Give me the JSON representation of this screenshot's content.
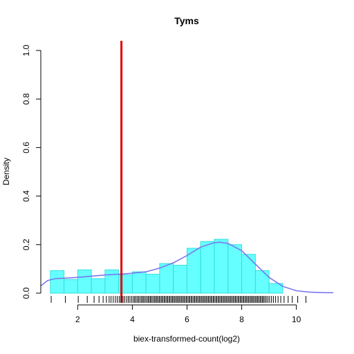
{
  "chart_data": {
    "type": "histogram",
    "title": "Tyms",
    "xlabel": "biex-transformed-count(log2)",
    "ylabel": "Density",
    "xlim": [
      0.65,
      11.35
    ],
    "ylim": [
      0,
      1.0
    ],
    "x_ticks": [
      2,
      4,
      6,
      8,
      10
    ],
    "y_ticks": [
      0.0,
      0.2,
      0.4,
      0.6,
      0.8,
      1.0
    ],
    "x_tick_labels": [
      "2",
      "4",
      "6",
      "8",
      "10"
    ],
    "y_tick_labels": [
      "0.0",
      "0.2",
      "0.4",
      "0.6",
      "0.8",
      "1.0"
    ],
    "histogram": {
      "fill_color": "#66ffff",
      "border_color": "#33dddd",
      "bins": [
        {
          "x0": 1.0,
          "x1": 1.5,
          "density": 0.093
        },
        {
          "x0": 1.5,
          "x1": 2.0,
          "density": 0.056
        },
        {
          "x0": 2.0,
          "x1": 2.5,
          "density": 0.096
        },
        {
          "x0": 2.5,
          "x1": 3.0,
          "density": 0.06
        },
        {
          "x0": 3.0,
          "x1": 3.5,
          "density": 0.096
        },
        {
          "x0": 3.5,
          "x1": 4.0,
          "density": 0.075
        },
        {
          "x0": 4.0,
          "x1": 4.5,
          "density": 0.088
        },
        {
          "x0": 4.5,
          "x1": 5.0,
          "density": 0.078
        },
        {
          "x0": 5.0,
          "x1": 5.5,
          "density": 0.122
        },
        {
          "x0": 5.5,
          "x1": 6.0,
          "density": 0.115
        },
        {
          "x0": 6.0,
          "x1": 6.5,
          "density": 0.185
        },
        {
          "x0": 6.5,
          "x1": 7.0,
          "density": 0.213
        },
        {
          "x0": 7.0,
          "x1": 7.5,
          "density": 0.222
        },
        {
          "x0": 7.5,
          "x1": 8.0,
          "density": 0.2
        },
        {
          "x0": 8.0,
          "x1": 8.5,
          "density": 0.16
        },
        {
          "x0": 8.5,
          "x1": 9.0,
          "density": 0.093
        },
        {
          "x0": 9.0,
          "x1": 9.5,
          "density": 0.04
        }
      ]
    },
    "density_curve": {
      "color": "#7777ee",
      "x": [
        0.65,
        0.9,
        1.2,
        1.6,
        2.0,
        2.5,
        3.0,
        3.5,
        4.0,
        4.5,
        5.0,
        5.5,
        6.0,
        6.5,
        7.0,
        7.2,
        7.5,
        8.0,
        8.5,
        9.0,
        9.5,
        10.0,
        10.5,
        11.0,
        11.35
      ],
      "y": [
        0.03,
        0.052,
        0.06,
        0.062,
        0.065,
        0.07,
        0.075,
        0.078,
        0.082,
        0.088,
        0.103,
        0.125,
        0.155,
        0.19,
        0.208,
        0.21,
        0.205,
        0.175,
        0.12,
        0.065,
        0.028,
        0.01,
        0.004,
        0.002,
        0.002
      ]
    },
    "threshold_line": {
      "x": 3.6,
      "color": "#dd0000"
    },
    "rug": {
      "color": "#000000",
      "x": [
        1.03,
        1.55,
        2.02,
        2.35,
        2.6,
        2.78,
        2.93,
        3.05,
        3.15,
        3.22,
        3.3,
        3.38,
        3.45,
        3.52,
        3.58,
        3.66,
        3.72,
        3.79,
        3.85,
        3.91,
        3.97,
        4.03,
        4.08,
        4.13,
        4.18,
        4.23,
        4.28,
        4.33,
        4.38,
        4.42,
        4.47,
        4.52,
        4.57,
        4.61,
        4.66,
        4.7,
        4.75,
        4.8,
        4.84,
        4.89,
        4.93,
        4.98,
        5.02,
        5.07,
        5.11,
        5.16,
        5.2,
        5.25,
        5.29,
        5.34,
        5.38,
        5.43,
        5.47,
        5.52,
        5.56,
        5.61,
        5.65,
        5.7,
        5.74,
        5.79,
        5.83,
        5.88,
        5.92,
        5.97,
        6.01,
        6.06,
        6.1,
        6.15,
        6.19,
        6.24,
        6.28,
        6.33,
        6.37,
        6.42,
        6.46,
        6.51,
        6.55,
        6.6,
        6.64,
        6.69,
        6.73,
        6.78,
        6.82,
        6.87,
        6.91,
        6.96,
        7.0,
        7.05,
        7.09,
        7.14,
        7.18,
        7.23,
        7.27,
        7.32,
        7.36,
        7.41,
        7.45,
        7.5,
        7.54,
        7.59,
        7.63,
        7.68,
        7.72,
        7.77,
        7.81,
        7.86,
        7.9,
        7.95,
        7.99,
        8.04,
        8.08,
        8.13,
        8.17,
        8.22,
        8.26,
        8.31,
        8.35,
        8.4,
        8.44,
        8.49,
        8.53,
        8.58,
        8.62,
        8.67,
        8.71,
        8.76,
        8.8,
        8.85,
        8.9,
        8.96,
        9.02,
        9.09,
        9.16,
        9.24,
        9.33,
        9.43,
        9.55,
        9.7,
        9.85,
        10.05,
        10.35
      ]
    }
  }
}
